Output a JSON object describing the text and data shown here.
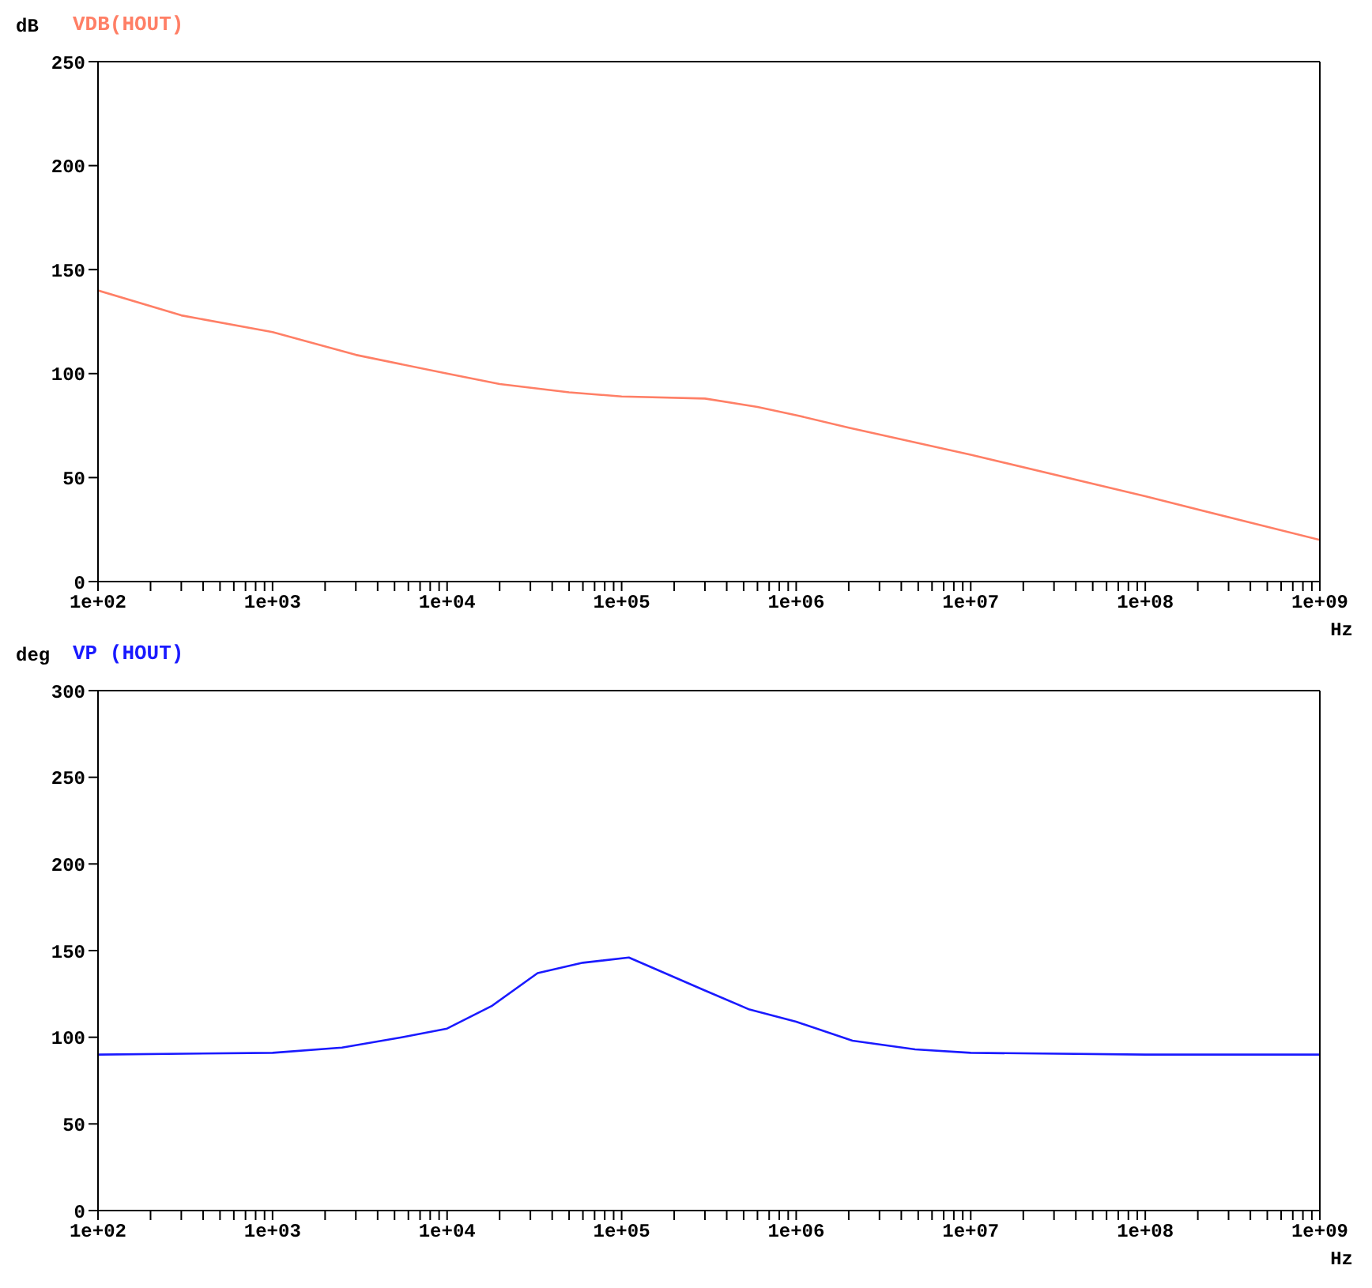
{
  "chart_data": [
    {
      "type": "line",
      "title": "VDB(HOUT)",
      "ylabel": "dB",
      "xlabel": "Hz",
      "log": "x",
      "grid": false,
      "marker": "none",
      "xlim": [
        100,
        1000000000
      ],
      "ylim": [
        0,
        250
      ],
      "yticks": [
        0,
        50,
        100,
        150,
        200,
        250
      ],
      "xticks": [
        {
          "value": 100,
          "label": "1e+02"
        },
        {
          "value": 200,
          "label": null
        },
        {
          "value": 300,
          "label": null
        },
        {
          "value": 400,
          "label": null
        },
        {
          "value": 500,
          "label": null
        },
        {
          "value": 600,
          "label": null
        },
        {
          "value": 700,
          "label": null
        },
        {
          "value": 800,
          "label": null
        },
        {
          "value": 900,
          "label": null
        },
        {
          "value": 1000,
          "label": "1e+03"
        },
        {
          "value": 2000,
          "label": null
        },
        {
          "value": 3000,
          "label": null
        },
        {
          "value": 4000,
          "label": null
        },
        {
          "value": 5000,
          "label": null
        },
        {
          "value": 6000,
          "label": null
        },
        {
          "value": 7000,
          "label": null
        },
        {
          "value": 8000,
          "label": null
        },
        {
          "value": 9000,
          "label": null
        },
        {
          "value": 10000,
          "label": "1e+04"
        },
        {
          "value": 20000,
          "label": null
        },
        {
          "value": 30000,
          "label": null
        },
        {
          "value": 40000,
          "label": null
        },
        {
          "value": 50000,
          "label": null
        },
        {
          "value": 60000,
          "label": null
        },
        {
          "value": 70000,
          "label": null
        },
        {
          "value": 80000,
          "label": null
        },
        {
          "value": 90000,
          "label": null
        },
        {
          "value": 100000,
          "label": "1e+05"
        },
        {
          "value": 200000,
          "label": null
        },
        {
          "value": 300000,
          "label": null
        },
        {
          "value": 400000,
          "label": null
        },
        {
          "value": 500000,
          "label": null
        },
        {
          "value": 600000,
          "label": null
        },
        {
          "value": 700000,
          "label": null
        },
        {
          "value": 800000,
          "label": null
        },
        {
          "value": 900000,
          "label": null
        },
        {
          "value": 1000000,
          "label": "1e+06"
        },
        {
          "value": 2000000,
          "label": null
        },
        {
          "value": 3000000,
          "label": null
        },
        {
          "value": 4000000,
          "label": null
        },
        {
          "value": 5000000,
          "label": null
        },
        {
          "value": 6000000,
          "label": null
        },
        {
          "value": 7000000,
          "label": null
        },
        {
          "value": 8000000,
          "label": null
        },
        {
          "value": 9000000,
          "label": null
        },
        {
          "value": 10000000,
          "label": "1e+07"
        },
        {
          "value": 20000000,
          "label": null
        },
        {
          "value": 30000000,
          "label": null
        },
        {
          "value": 40000000,
          "label": null
        },
        {
          "value": 50000000,
          "label": null
        },
        {
          "value": 60000000,
          "label": null
        },
        {
          "value": 70000000,
          "label": null
        },
        {
          "value": 80000000,
          "label": null
        },
        {
          "value": 90000000,
          "label": null
        },
        {
          "value": 100000000,
          "label": "1e+08"
        },
        {
          "value": 200000000,
          "label": null
        },
        {
          "value": 300000000,
          "label": null
        },
        {
          "value": 400000000,
          "label": null
        },
        {
          "value": 500000000,
          "label": null
        },
        {
          "value": 600000000,
          "label": null
        },
        {
          "value": 700000000,
          "label": null
        },
        {
          "value": 800000000,
          "label": null
        },
        {
          "value": 900000000,
          "label": null
        },
        {
          "value": 1000000000,
          "label": "1e+09"
        }
      ],
      "x": [
        100,
        300,
        1000,
        3000,
        10000,
        20000,
        50000,
        100000,
        300000,
        600000,
        1000000,
        2000000,
        10000000,
        100000000,
        1000000000
      ],
      "series": [
        {
          "color": "#ff7f66",
          "values": [
            140,
            128,
            120,
            109,
            100,
            95,
            91,
            89,
            88,
            84,
            80,
            74,
            61,
            41,
            20
          ]
        }
      ]
    },
    {
      "type": "line",
      "title": "VP (HOUT)",
      "ylabel": "deg",
      "xlabel": "Hz",
      "log": "x",
      "grid": false,
      "marker": "none",
      "xlim": [
        100,
        1000000000
      ],
      "ylim": [
        0,
        300
      ],
      "yticks": [
        0,
        50,
        100,
        150,
        200,
        250,
        300
      ],
      "xticks": [
        {
          "value": 100,
          "label": "1e+02"
        },
        {
          "value": 200,
          "label": null
        },
        {
          "value": 300,
          "label": null
        },
        {
          "value": 400,
          "label": null
        },
        {
          "value": 500,
          "label": null
        },
        {
          "value": 600,
          "label": null
        },
        {
          "value": 700,
          "label": null
        },
        {
          "value": 800,
          "label": null
        },
        {
          "value": 900,
          "label": null
        },
        {
          "value": 1000,
          "label": "1e+03"
        },
        {
          "value": 2000,
          "label": null
        },
        {
          "value": 3000,
          "label": null
        },
        {
          "value": 4000,
          "label": null
        },
        {
          "value": 5000,
          "label": null
        },
        {
          "value": 6000,
          "label": null
        },
        {
          "value": 7000,
          "label": null
        },
        {
          "value": 8000,
          "label": null
        },
        {
          "value": 9000,
          "label": null
        },
        {
          "value": 10000,
          "label": "1e+04"
        },
        {
          "value": 20000,
          "label": null
        },
        {
          "value": 30000,
          "label": null
        },
        {
          "value": 40000,
          "label": null
        },
        {
          "value": 50000,
          "label": null
        },
        {
          "value": 60000,
          "label": null
        },
        {
          "value": 70000,
          "label": null
        },
        {
          "value": 80000,
          "label": null
        },
        {
          "value": 90000,
          "label": null
        },
        {
          "value": 100000,
          "label": "1e+05"
        },
        {
          "value": 200000,
          "label": null
        },
        {
          "value": 300000,
          "label": null
        },
        {
          "value": 400000,
          "label": null
        },
        {
          "value": 500000,
          "label": null
        },
        {
          "value": 600000,
          "label": null
        },
        {
          "value": 700000,
          "label": null
        },
        {
          "value": 800000,
          "label": null
        },
        {
          "value": 900000,
          "label": null
        },
        {
          "value": 1000000,
          "label": "1e+06"
        },
        {
          "value": 2000000,
          "label": null
        },
        {
          "value": 3000000,
          "label": null
        },
        {
          "value": 4000000,
          "label": null
        },
        {
          "value": 5000000,
          "label": null
        },
        {
          "value": 6000000,
          "label": null
        },
        {
          "value": 7000000,
          "label": null
        },
        {
          "value": 8000000,
          "label": null
        },
        {
          "value": 9000000,
          "label": null
        },
        {
          "value": 10000000,
          "label": "1e+07"
        },
        {
          "value": 20000000,
          "label": null
        },
        {
          "value": 30000000,
          "label": null
        },
        {
          "value": 40000000,
          "label": null
        },
        {
          "value": 50000000,
          "label": null
        },
        {
          "value": 60000000,
          "label": null
        },
        {
          "value": 70000000,
          "label": null
        },
        {
          "value": 80000000,
          "label": null
        },
        {
          "value": 90000000,
          "label": null
        },
        {
          "value": 100000000,
          "label": "1e+08"
        },
        {
          "value": 200000000,
          "label": null
        },
        {
          "value": 300000000,
          "label": null
        },
        {
          "value": 400000000,
          "label": null
        },
        {
          "value": 500000000,
          "label": null
        },
        {
          "value": 600000000,
          "label": null
        },
        {
          "value": 700000000,
          "label": null
        },
        {
          "value": 800000000,
          "label": null
        },
        {
          "value": 900000000,
          "label": null
        },
        {
          "value": 1000000000,
          "label": "1e+09"
        }
      ],
      "x": [
        100,
        1000,
        2500,
        5500,
        10000,
        18000,
        33000,
        60000,
        110000,
        300000,
        540000,
        1000000,
        2100000,
        4800000,
        10000000,
        100000000,
        1000000000
      ],
      "series": [
        {
          "color": "#1a1aff",
          "values": [
            90,
            91,
            94,
            100,
            105,
            118,
            137,
            143,
            146,
            127,
            116,
            109,
            98,
            93,
            91,
            90,
            90
          ]
        }
      ]
    }
  ]
}
